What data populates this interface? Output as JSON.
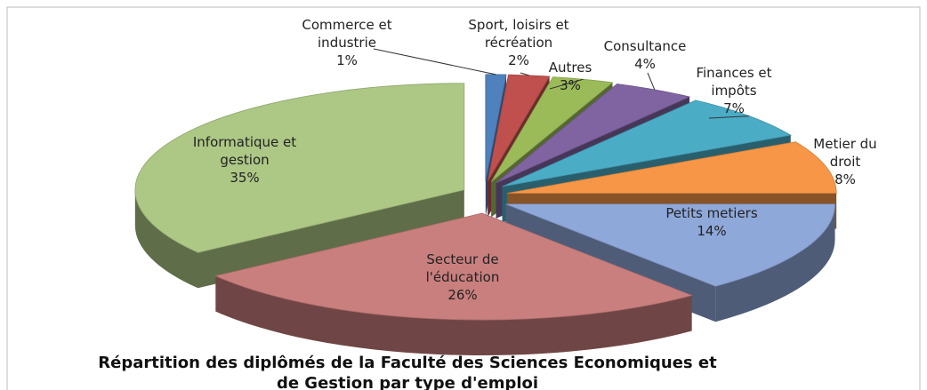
{
  "chart_data": {
    "type": "pie",
    "title": "Répartition des diplômés de la Faculté des Sciences Economiques et de Gestion par type d'emploi",
    "categories": [
      "Commerce et industrie",
      "Sport, loisirs et récréation",
      "Autres",
      "Consultance",
      "Finances et impôts",
      "Metier du droit",
      "Petits metiers",
      "Secteur de l'éducation",
      "Informatique et gestion"
    ],
    "values": [
      1,
      2,
      3,
      4,
      7,
      8,
      14,
      26,
      35
    ],
    "value_labels": [
      "1%",
      "2%",
      "3%",
      "4%",
      "7%",
      "8%",
      "14%",
      "26%",
      "35%"
    ],
    "colors": [
      "#4f81bd",
      "#c0504d",
      "#9bbb59",
      "#8064a2",
      "#4bacc6",
      "#f79646",
      "#8fa8da",
      "#c97f7e",
      "#adc785"
    ]
  }
}
